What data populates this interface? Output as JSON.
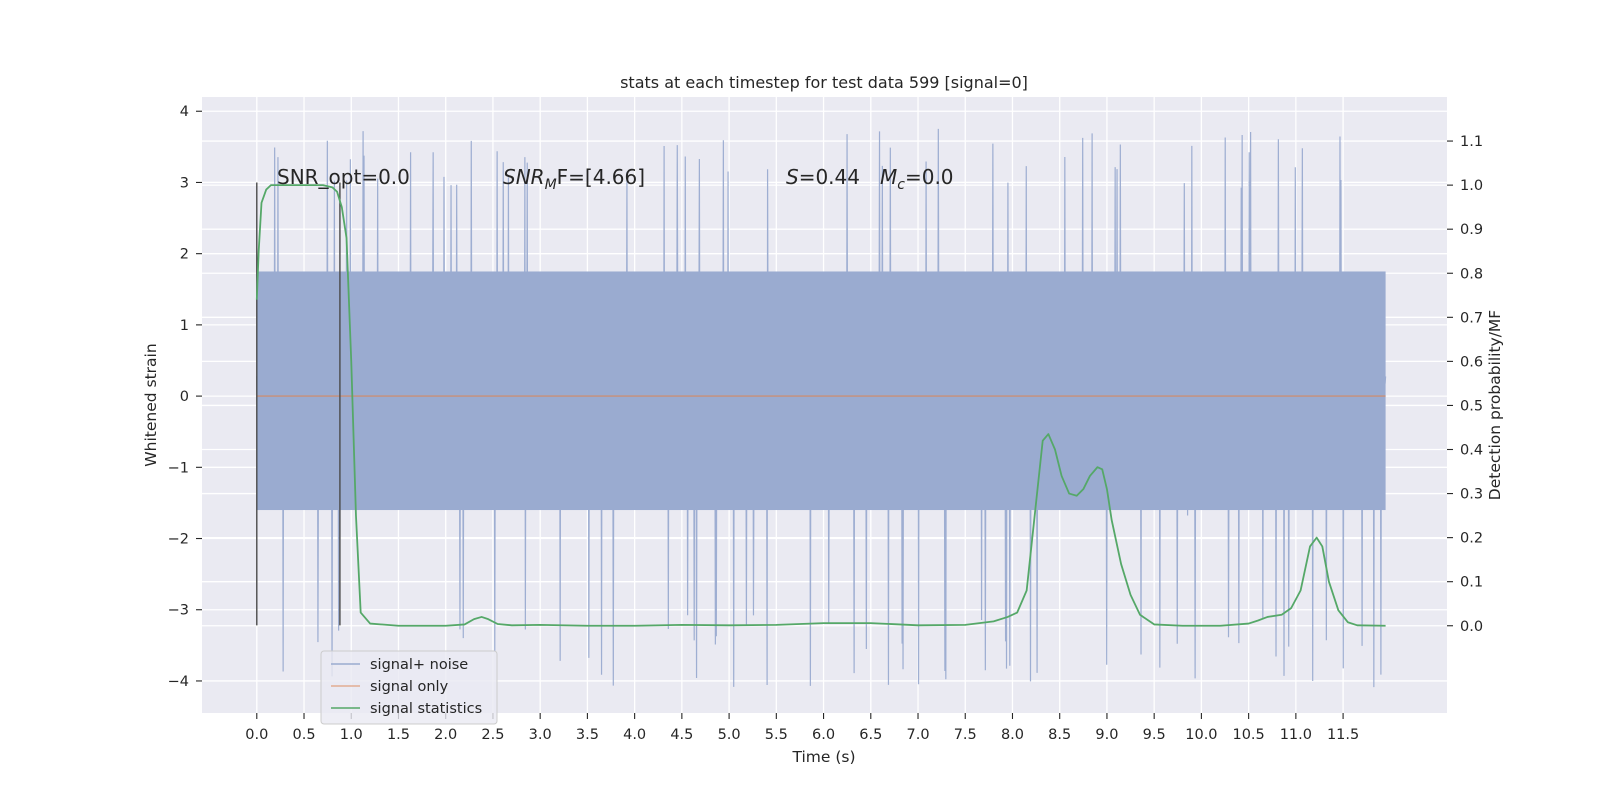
{
  "chart_data": {
    "type": "line",
    "title": "stats at each timestep for test data 599 [signal=0]",
    "xlabel": "Time (s)",
    "ylabel_left": "Whitened strain",
    "ylabel_right": "Detection probability/MF",
    "xlim": [
      -0.58,
      12.6
    ],
    "ylim_left": [
      -4.45,
      4.2
    ],
    "ylim_right": [
      -0.198,
      1.2
    ],
    "x_ticks": [
      "0.0",
      "0.5",
      "1.0",
      "1.5",
      "2.0",
      "2.5",
      "3.0",
      "3.5",
      "4.0",
      "4.5",
      "5.0",
      "5.5",
      "6.0",
      "6.5",
      "7.0",
      "7.5",
      "8.0",
      "8.5",
      "9.0",
      "9.5",
      "10.0",
      "10.5",
      "11.0",
      "11.5"
    ],
    "y_ticks_left": [
      "4",
      "3",
      "2",
      "1",
      "0",
      "−1",
      "−2",
      "−3",
      "−4"
    ],
    "y_ticks_right": [
      "1.1",
      "1.0",
      "0.9",
      "0.8",
      "0.7",
      "0.6",
      "0.5",
      "0.4",
      "0.3",
      "0.2",
      "0.1",
      "0.0"
    ],
    "grid": true,
    "legend_position": "lower-left",
    "annotations": {
      "snr_opt": "SNR_opt=0.0",
      "snr_mf_main": "SNR",
      "snr_mf_sub": "M",
      "snr_mf_rest": "F=[4.66]",
      "s_main": "S",
      "s_rest": "=0.44",
      "mc_main": "M",
      "mc_sub": "c",
      "mc_rest": "=0.0"
    },
    "vertical_markers_x": [
      0.0,
      0.88
    ],
    "vertical_markers_y": [
      -3.22,
      3.0
    ],
    "series": [
      {
        "name": "signal+ noise",
        "color": "#9aabd0",
        "note_envelope": "noise, dense; typical range about -2.2 to 2.2 with outlier spikes",
        "envelope": {
          "x_start": 0.0,
          "x_end": 11.95,
          "core_low": -1.6,
          "core_high": 1.75,
          "spike_min": -4.1,
          "spike_max": 3.85
        }
      },
      {
        "name": "signal only",
        "color": "#dd8452",
        "x": [
          0.0,
          11.95
        ],
        "y": [
          0.0,
          0.0
        ]
      },
      {
        "name": "signal statistics",
        "color": "#55a868",
        "x": [
          0.0,
          0.02,
          0.05,
          0.1,
          0.15,
          0.2,
          0.3,
          0.5,
          0.7,
          0.8,
          0.85,
          0.9,
          0.95,
          1.0,
          1.05,
          1.1,
          1.2,
          1.5,
          2.0,
          2.2,
          2.3,
          2.38,
          2.45,
          2.55,
          2.7,
          3.0,
          3.5,
          4.0,
          4.5,
          5.0,
          5.5,
          6.0,
          6.5,
          7.0,
          7.5,
          7.8,
          7.95,
          8.05,
          8.15,
          8.25,
          8.32,
          8.38,
          8.45,
          8.52,
          8.6,
          8.68,
          8.75,
          8.82,
          8.9,
          8.95,
          9.0,
          9.05,
          9.15,
          9.25,
          9.35,
          9.5,
          9.8,
          10.2,
          10.5,
          10.6,
          10.7,
          10.85,
          10.95,
          11.05,
          11.15,
          11.22,
          11.28,
          11.35,
          11.45,
          11.55,
          11.65,
          11.95
        ],
        "y": [
          0.74,
          0.85,
          0.96,
          0.99,
          1.0,
          1.0,
          1.0,
          1.0,
          1.0,
          0.995,
          0.985,
          0.95,
          0.88,
          0.6,
          0.25,
          0.03,
          0.005,
          0.0,
          0.0,
          0.003,
          0.015,
          0.02,
          0.015,
          0.004,
          0.001,
          0.002,
          0.0,
          0.0,
          0.002,
          0.001,
          0.002,
          0.006,
          0.006,
          0.001,
          0.002,
          0.01,
          0.02,
          0.03,
          0.08,
          0.28,
          0.42,
          0.435,
          0.4,
          0.34,
          0.3,
          0.295,
          0.31,
          0.34,
          0.36,
          0.355,
          0.31,
          0.24,
          0.14,
          0.07,
          0.025,
          0.003,
          0.0,
          0.0,
          0.005,
          0.012,
          0.02,
          0.025,
          0.04,
          0.08,
          0.18,
          0.2,
          0.18,
          0.1,
          0.035,
          0.008,
          0.001,
          0.0
        ]
      }
    ]
  }
}
